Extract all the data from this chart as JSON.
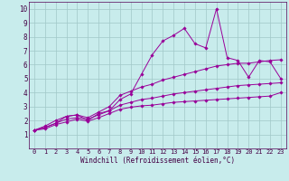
{
  "xlabel": "Windchill (Refroidissement éolien,°C)",
  "background_color": "#c8ecec",
  "grid_color": "#a0c8c8",
  "line_color": "#990099",
  "xlim": [
    -0.5,
    23.5
  ],
  "ylim": [
    0,
    10.5
  ],
  "xticks": [
    0,
    1,
    2,
    3,
    4,
    5,
    6,
    7,
    8,
    9,
    10,
    11,
    12,
    13,
    14,
    15,
    16,
    17,
    18,
    19,
    20,
    21,
    22,
    23
  ],
  "yticks": [
    1,
    2,
    3,
    4,
    5,
    6,
    7,
    8,
    9,
    10
  ],
  "series": [
    [
      1.3,
      1.5,
      1.8,
      2.3,
      2.4,
      2.0,
      2.5,
      2.7,
      3.5,
      3.9,
      5.3,
      6.7,
      7.7,
      8.1,
      8.6,
      7.5,
      7.2,
      10.0,
      6.5,
      6.3,
      5.1,
      6.3,
      6.2,
      5.0
    ],
    [
      1.3,
      1.6,
      2.0,
      2.3,
      2.4,
      2.2,
      2.6,
      3.0,
      3.8,
      4.1,
      4.4,
      4.6,
      4.9,
      5.1,
      5.3,
      5.5,
      5.7,
      5.9,
      6.0,
      6.1,
      6.1,
      6.2,
      6.3,
      6.35
    ],
    [
      1.3,
      1.5,
      1.8,
      2.1,
      2.2,
      2.1,
      2.4,
      2.7,
      3.1,
      3.3,
      3.5,
      3.6,
      3.75,
      3.9,
      4.0,
      4.1,
      4.2,
      4.3,
      4.4,
      4.5,
      4.55,
      4.6,
      4.65,
      4.7
    ],
    [
      1.3,
      1.4,
      1.7,
      1.9,
      2.1,
      1.95,
      2.2,
      2.5,
      2.8,
      2.95,
      3.05,
      3.1,
      3.2,
      3.3,
      3.35,
      3.4,
      3.45,
      3.5,
      3.55,
      3.6,
      3.65,
      3.7,
      3.75,
      4.0
    ]
  ],
  "marker": "D",
  "markersize": 1.8,
  "linewidth": 0.7,
  "tick_fontsize": 5.0,
  "xlabel_fontsize": 5.5
}
